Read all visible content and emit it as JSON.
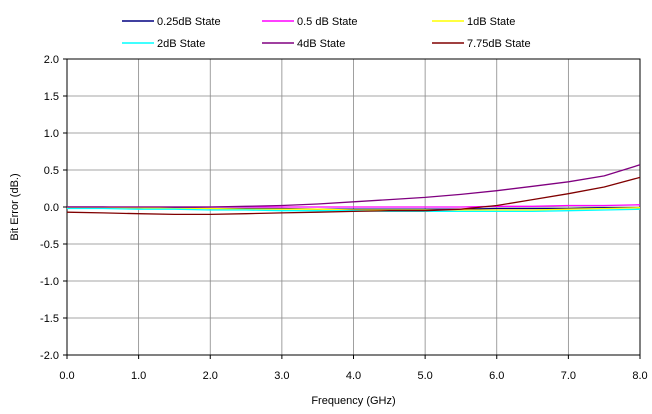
{
  "chart_data": {
    "type": "line",
    "title": "",
    "xlabel": "Frequency (GHz)",
    "ylabel": "Bit Error (dB.)",
    "xlim": [
      0,
      8
    ],
    "ylim": [
      -2,
      2
    ],
    "x_ticks": [
      "0.0",
      "1.0",
      "2.0",
      "3.0",
      "4.0",
      "5.0",
      "6.0",
      "7.0",
      "8.0"
    ],
    "y_ticks": [
      "2.0",
      "1.5",
      "1.0",
      "0.5",
      "0.0",
      "-0.5",
      "-1.0",
      "-1.5",
      "-2.0"
    ],
    "grid": true,
    "legend_position": "top",
    "series": [
      {
        "name": "0.25dB State",
        "color": "#000080",
        "x": [
          0,
          0.5,
          1,
          1.5,
          2,
          2.5,
          3,
          3.5,
          4,
          4.5,
          5,
          5.5,
          6,
          6.5,
          7,
          7.5,
          8
        ],
        "y": [
          0.0,
          0.0,
          -0.01,
          -0.01,
          -0.02,
          -0.02,
          -0.02,
          -0.03,
          -0.03,
          -0.03,
          -0.03,
          -0.03,
          -0.02,
          -0.02,
          -0.02,
          -0.01,
          -0.01
        ]
      },
      {
        "name": "0.5 dB State",
        "color": "#FF00FF",
        "x": [
          0,
          0.5,
          1,
          1.5,
          2,
          2.5,
          3,
          3.5,
          4,
          4.5,
          5,
          5.5,
          6,
          6.5,
          7,
          7.5,
          8
        ],
        "y": [
          0.0,
          0.0,
          0.0,
          0.0,
          0.0,
          0.0,
          0.0,
          0.0,
          0.0,
          0.0,
          0.0,
          0.0,
          0.01,
          0.01,
          0.02,
          0.02,
          0.03
        ]
      },
      {
        "name": "1dB State",
        "color": "#FFFF00",
        "x": [
          0,
          0.5,
          1,
          1.5,
          2,
          2.5,
          3,
          3.5,
          4,
          4.5,
          5,
          5.5,
          6,
          6.5,
          7,
          7.5,
          8
        ],
        "y": [
          -0.01,
          -0.01,
          -0.01,
          -0.02,
          -0.02,
          -0.03,
          -0.03,
          -0.03,
          -0.04,
          -0.04,
          -0.04,
          -0.04,
          -0.04,
          -0.04,
          -0.03,
          -0.02,
          -0.01
        ]
      },
      {
        "name": "2dB State",
        "color": "#00FFFF",
        "x": [
          0,
          0.5,
          1,
          1.5,
          2,
          2.5,
          3,
          3.5,
          4,
          4.5,
          5,
          5.5,
          6,
          6.5,
          7,
          7.5,
          8
        ],
        "y": [
          -0.02,
          -0.02,
          -0.03,
          -0.03,
          -0.04,
          -0.04,
          -0.05,
          -0.05,
          -0.05,
          -0.06,
          -0.06,
          -0.06,
          -0.06,
          -0.06,
          -0.05,
          -0.04,
          -0.03
        ]
      },
      {
        "name": "4dB State",
        "color": "#800080",
        "x": [
          0,
          0.5,
          1,
          1.5,
          2,
          2.5,
          3,
          3.5,
          4,
          4.5,
          5,
          5.5,
          6,
          6.5,
          7,
          7.5,
          8
        ],
        "y": [
          0.0,
          0.0,
          0.0,
          0.0,
          0.0,
          0.01,
          0.02,
          0.04,
          0.07,
          0.1,
          0.13,
          0.17,
          0.22,
          0.28,
          0.34,
          0.42,
          0.57
        ]
      },
      {
        "name": "7.75dB State",
        "color": "#800000",
        "x": [
          0,
          0.5,
          1,
          1.5,
          2,
          2.5,
          3,
          3.5,
          4,
          4.5,
          5,
          5.5,
          6,
          6.5,
          7,
          7.5,
          8
        ],
        "y": [
          -0.07,
          -0.08,
          -0.09,
          -0.1,
          -0.1,
          -0.09,
          -0.08,
          -0.07,
          -0.06,
          -0.05,
          -0.05,
          -0.03,
          0.02,
          0.1,
          0.18,
          0.27,
          0.4
        ]
      }
    ]
  }
}
